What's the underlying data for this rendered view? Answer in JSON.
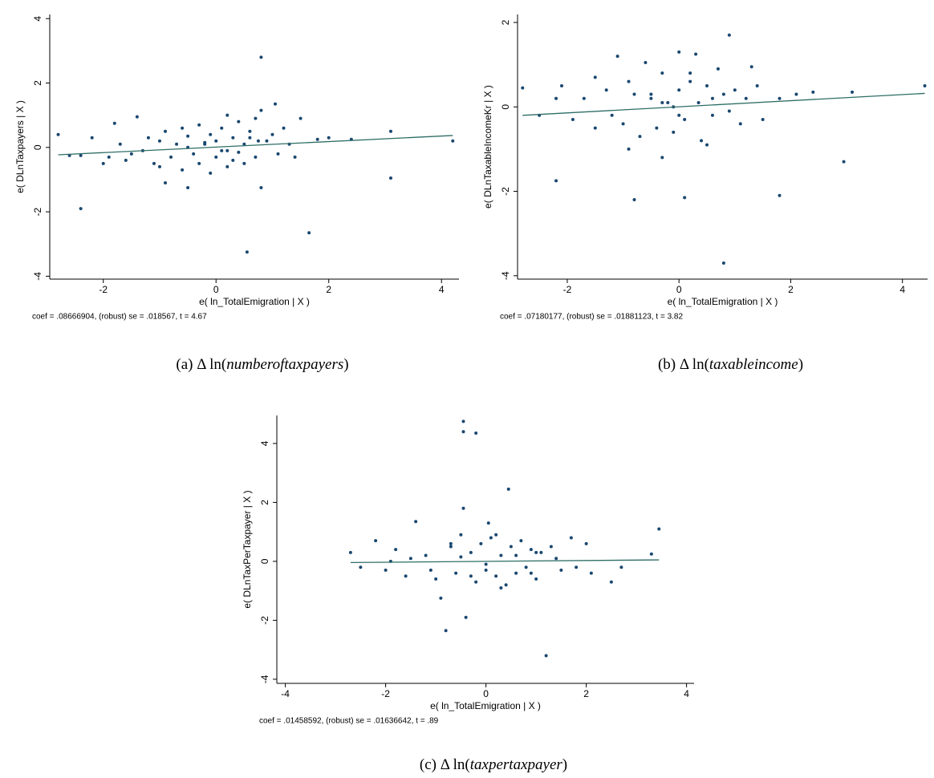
{
  "chart_data": [
    {
      "type": "scatter",
      "x_label": "e( ln_TotalEmigration | X )",
      "y_label": "e( DLnTaxpayers | X )",
      "note": "coef = .08666904, (robust) se = .018567, t = 4.67",
      "caption": [
        "(a) Δ ln(",
        "numberoftaxpayers",
        ")"
      ],
      "color": "#1a476f",
      "line_color": "#2d6d66",
      "xlim": [
        -2.95,
        4.31
      ],
      "ylim": [
        -4.09,
        4.13
      ],
      "xticks": [
        -2,
        0,
        2,
        4
      ],
      "yticks": [
        -4,
        -2,
        0,
        2,
        4
      ],
      "x": [
        -2.8,
        -2.6,
        -2.4,
        -2.2,
        -2.0,
        -1.9,
        -1.8,
        -1.7,
        -1.6,
        -1.5,
        -1.4,
        -1.3,
        -1.2,
        -1.1,
        -1.0,
        -0.9,
        -0.9,
        -0.8,
        -0.7,
        -0.6,
        -0.6,
        -0.5,
        -0.5,
        -0.4,
        -0.3,
        -0.3,
        -0.2,
        -0.1,
        -0.1,
        0,
        0,
        0.1,
        0.1,
        0.2,
        0.2,
        0.3,
        0.3,
        0.4,
        0.5,
        0.5,
        0.6,
        0.7,
        0.7,
        0.8,
        0.8,
        0.8,
        0.9,
        1.0,
        1.05,
        1.1,
        1.2,
        1.3,
        1.4,
        1.5,
        1.65,
        1.8,
        2.0,
        2.4,
        3.1,
        3.1,
        4.2,
        0.55,
        -2.4,
        0.75,
        -0.5,
        -1.0,
        0.2,
        -0.2,
        0.4,
        0.6
      ],
      "values": [
        0.4,
        -0.25,
        -0.25,
        0.3,
        -0.5,
        -0.3,
        0.75,
        0.1,
        -0.4,
        -0.2,
        0.95,
        -0.1,
        0.3,
        -0.5,
        0.2,
        -1.1,
        0.5,
        -0.3,
        0.1,
        -0.7,
        0.6,
        -1.25,
        0.35,
        -0.2,
        0.7,
        -0.5,
        0.1,
        -0.8,
        0.4,
        0.2,
        -0.3,
        0.6,
        -0.1,
        1.0,
        -0.6,
        0.3,
        -0.4,
        0.8,
        0.1,
        -0.5,
        0.5,
        -0.3,
        0.9,
        2.8,
        1.15,
        -1.25,
        0.2,
        0.4,
        1.35,
        -0.2,
        0.6,
        0.1,
        -0.3,
        0.9,
        -2.65,
        0.25,
        0.3,
        0.25,
        -0.95,
        0.5,
        0.2,
        -3.25,
        -1.9,
        0.2,
        0.0,
        -0.6,
        -0.1,
        0.15,
        -0.15,
        0.3
      ],
      "fit_x": [
        -2.8,
        4.2
      ],
      "fit_values": [
        -0.23,
        0.37
      ]
    },
    {
      "type": "scatter",
      "x_label": "e( ln_TotalEmigration | X )",
      "y_label": "e( DLnTaxableIncomeKr | X )",
      "note": "coef = .07180177, (robust) se = .01881123, t = 3.82",
      "caption": [
        "(b) Δ ln(",
        "taxableincome",
        ")"
      ],
      "color": "#1a476f",
      "line_color": "#2d6d66",
      "xlim": [
        -2.89,
        4.45
      ],
      "ylim": [
        -4.08,
        2.19
      ],
      "xticks": [
        -2,
        0,
        2,
        4
      ],
      "yticks": [
        -4,
        -2,
        0,
        2
      ],
      "x": [
        -2.8,
        -2.5,
        -2.2,
        -2.1,
        -1.9,
        -1.7,
        -1.5,
        -1.3,
        -1.2,
        -1.1,
        -1.0,
        -0.9,
        -0.8,
        -0.8,
        -0.7,
        -0.6,
        -0.5,
        -0.4,
        -0.3,
        -0.3,
        -0.2,
        -0.1,
        0,
        0,
        0.1,
        0.1,
        0.2,
        0.3,
        0.35,
        0.4,
        0.5,
        0.6,
        0.7,
        0.8,
        0.8,
        0.9,
        0.9,
        1.0,
        1.1,
        1.2,
        1.3,
        1.5,
        1.8,
        1.8,
        2.1,
        2.4,
        2.95,
        3.1,
        4.4,
        -2.2,
        -0.5,
        0.5,
        -1.5,
        0.2,
        -0.1,
        0.6,
        -0.9,
        1.4,
        0.0,
        -0.3
      ],
      "values": [
        0.45,
        -0.2,
        -1.75,
        0.5,
        -0.3,
        0.2,
        -0.5,
        0.4,
        -0.2,
        1.2,
        -0.4,
        0.6,
        -2.2,
        0.3,
        -0.7,
        1.05,
        0.2,
        -0.5,
        0.8,
        -1.2,
        0.1,
        -0.6,
        1.3,
        0.4,
        -2.15,
        -0.3,
        0.6,
        1.25,
        0.1,
        -0.8,
        0.5,
        -0.2,
        0.9,
        -3.7,
        0.3,
        1.7,
        -0.1,
        0.4,
        -0.4,
        0.2,
        0.95,
        -0.3,
        -2.1,
        0.2,
        0.3,
        0.35,
        -1.3,
        0.35,
        0.5,
        0.2,
        0.3,
        -0.9,
        0.7,
        0.8,
        0.0,
        0.2,
        -1.0,
        0.5,
        -0.2,
        0.1
      ],
      "fit_x": [
        -2.8,
        4.4
      ],
      "fit_values": [
        -0.2,
        0.32
      ]
    },
    {
      "type": "scatter",
      "x_label": "e( ln_TotalEmigration | X )",
      "y_label": "e( DLnTaxPerTaxpayer | X )",
      "note": "coef = .01458592, (robust) se = .01636642, t = .89",
      "caption": [
        "(c) Δ ln(",
        "taxpertaxpayer",
        ")"
      ],
      "color": "#1a476f",
      "line_color": "#2d6d66",
      "xlim": [
        -4.17,
        4.15
      ],
      "ylim": [
        -4.14,
        4.95
      ],
      "xticks": [
        -4,
        -2,
        0,
        2,
        4
      ],
      "yticks": [
        -4,
        -2,
        0,
        2,
        4
      ],
      "x": [
        -2.7,
        -2.5,
        -2.2,
        -2.0,
        -1.8,
        -1.6,
        -1.4,
        -1.2,
        -1.0,
        -0.9,
        -0.8,
        -0.7,
        -0.6,
        -0.5,
        -0.45,
        -0.45,
        -0.45,
        -0.4,
        -0.3,
        -0.2,
        -0.2,
        -0.1,
        0,
        0.05,
        0.1,
        0.2,
        0.3,
        0.4,
        0.45,
        0.5,
        0.6,
        0.7,
        0.8,
        0.9,
        1.0,
        1.1,
        1.2,
        1.3,
        1.5,
        1.7,
        2.0,
        2.1,
        2.5,
        2.7,
        3.3,
        3.45,
        -1.5,
        -1.1,
        -0.3,
        0.2,
        0.6,
        1.4,
        -0.7,
        0.0,
        0.9,
        -1.9,
        1.8,
        -0.5,
        0.3,
        1.0
      ],
      "values": [
        0.3,
        -0.2,
        0.7,
        -0.3,
        0.4,
        -0.5,
        1.35,
        0.2,
        -0.6,
        -1.25,
        -2.35,
        0.5,
        -0.4,
        0.9,
        4.75,
        4.4,
        1.8,
        -1.9,
        0.3,
        4.35,
        -0.7,
        0.6,
        -0.3,
        1.3,
        0.8,
        -0.5,
        0.2,
        -0.8,
        2.45,
        0.5,
        -0.4,
        0.7,
        -0.2,
        0.4,
        -0.6,
        0.3,
        -3.2,
        0.5,
        -0.3,
        0.8,
        0.6,
        -0.4,
        -0.7,
        -0.2,
        0.25,
        1.1,
        0.1,
        -0.3,
        -0.5,
        0.9,
        0.2,
        0.1,
        0.6,
        -0.1,
        -0.4,
        0.0,
        -0.2,
        0.15,
        -0.9,
        0.3
      ],
      "fit_x": [
        -2.7,
        3.45
      ],
      "fit_values": [
        -0.04,
        0.05
      ]
    }
  ]
}
